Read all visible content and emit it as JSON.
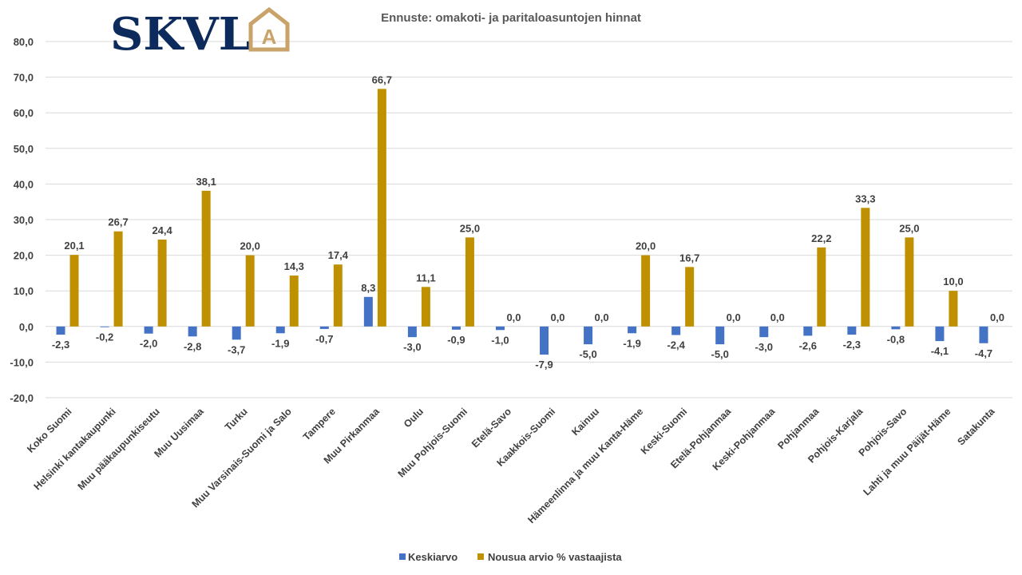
{
  "chart_data": {
    "type": "bar",
    "title": "Ennuste: omakoti- ja paritaloasuntojen hinnat",
    "logo_text": "SKVL",
    "logo_mark_letter": "A",
    "xlabel": "",
    "ylabel": "",
    "ylim": [
      -20,
      80
    ],
    "yticks": [
      80,
      70,
      60,
      50,
      40,
      30,
      20,
      10,
      0,
      -10,
      -20
    ],
    "ytick_labels": [
      "80,0",
      "70,0",
      "60,0",
      "50,0",
      "40,0",
      "30,0",
      "20,0",
      "10,0",
      "0,0",
      "-10,0",
      "-20,0"
    ],
    "grid": true,
    "legend_position": "bottom",
    "categories": [
      "Koko Suomi",
      "Helsinki kantakaupunki",
      "Muu pääkaupunkiseutu",
      "Muu Uusimaa",
      "Turku",
      "Muu Varsinais-Suomi ja Salo",
      "Tampere",
      "Muu Pirkanmaa",
      "Oulu",
      "Muu Pohjois-Suomi",
      "Etelä-Savo",
      "Kaakkois-Suomi",
      "Kainuu",
      "Hämeenlinna ja muu Kanta-Häme",
      "Keski-Suomi",
      "Etelä-Pohjanmaa",
      "Keski-Pohjanmaa",
      "Pohjanmaa",
      "Pohjois-Karjala",
      "Pohjois-Savo",
      "Lahti ja muu Päijät-Häme",
      "Satakunta"
    ],
    "series": [
      {
        "name": "Keskiarvo",
        "color": "#4472c4",
        "values": [
          -2.3,
          -0.2,
          -2.0,
          -2.8,
          -3.7,
          -1.9,
          -0.7,
          8.3,
          -3.0,
          -0.9,
          -1.0,
          -7.9,
          -5.0,
          -1.9,
          -2.4,
          -5.0,
          -3.0,
          -2.6,
          -2.3,
          -0.8,
          -4.1,
          -4.7
        ],
        "labels": [
          "-2,3",
          "-0,2",
          "-2,0",
          "-2,8",
          "-3,7",
          "-1,9",
          "-0,7",
          "8,3",
          "-3,0",
          "-0,9",
          "-1,0",
          "-7,9",
          "-5,0",
          "-1,9",
          "-2,4",
          "-5,0",
          "-3,0",
          "-2,6",
          "-2,3",
          "-0,8",
          "-4,1",
          "-4,7"
        ]
      },
      {
        "name": "Nousua arvio % vastaajista",
        "color": "#bf9000",
        "values": [
          20.1,
          26.7,
          24.4,
          38.1,
          20.0,
          14.3,
          17.4,
          66.7,
          11.1,
          25.0,
          0.0,
          0.0,
          0.0,
          20.0,
          16.7,
          0.0,
          0.0,
          22.2,
          33.3,
          25.0,
          10.0,
          0.0
        ],
        "labels": [
          "20,1",
          "26,7",
          "24,4",
          "38,1",
          "20,0",
          "14,3",
          "17,4",
          "66,7",
          "11,1",
          "25,0",
          "0,0",
          "0,0",
          "0,0",
          "20,0",
          "16,7",
          "0,0",
          "0,0",
          "22,2",
          "33,3",
          "25,0",
          "10,0",
          "0,0"
        ]
      }
    ],
    "colors": {
      "logo_navy": "#0d2a5c",
      "logo_gold": "#c9a36a",
      "grid": "#d9d9d9"
    }
  }
}
